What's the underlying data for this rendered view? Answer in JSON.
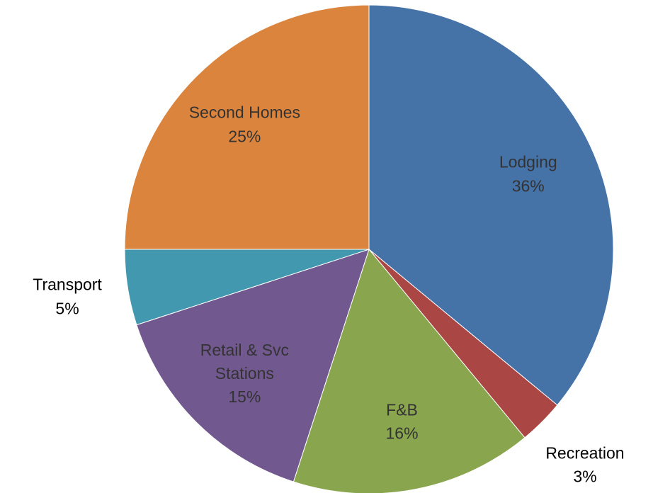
{
  "chart_data": {
    "type": "pie",
    "categories": [
      "Lodging",
      "Recreation",
      "F&B",
      "Retail & Svc Stations",
      "Transport",
      "Second Homes"
    ],
    "values": [
      36,
      3,
      16,
      15,
      5,
      25
    ],
    "value_labels": [
      "36%",
      "3%",
      "16%",
      "15%",
      "5%",
      "25%"
    ],
    "colors": [
      "#4572a7",
      "#aa4643",
      "#89a54e",
      "#71588f",
      "#4198af",
      "#db843d"
    ]
  }
}
